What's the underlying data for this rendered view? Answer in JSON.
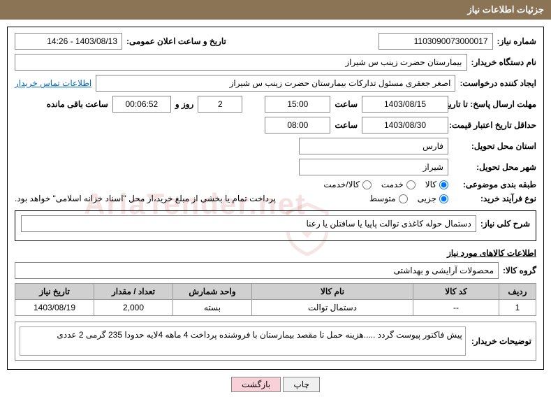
{
  "titleBar": "جزئیات اطلاعات نیاز",
  "fields": {
    "needNumberLabel": "شماره نیاز:",
    "needNumber": "1103090073000017",
    "announceDateLabel": "تاریخ و ساعت اعلان عمومی:",
    "announceDate": "1403/08/13 - 14:26",
    "buyerOrgLabel": "نام دستگاه خریدار:",
    "buyerOrg": "بیمارستان حضرت زینب  س  شیراز",
    "requesterLabel": "ایجاد کننده درخواست:",
    "requester": "اصغر جعفری مسئول تدارکات بیمارستان حضرت زینب  س  شیراز",
    "buyerContactLink": "اطلاعات تماس خریدار",
    "responseDeadlineLabel": "مهلت ارسال پاسخ:  تا تاریخ:",
    "responseDeadlineDate": "1403/08/15",
    "hourLabel": "ساعت",
    "responseDeadlineHour": "15:00",
    "daysAndLabel": "روز و",
    "daysValue": "2",
    "countdownValue": "00:06:52",
    "remainingLabel": "ساعت باقی مانده",
    "priceValidityLabel": "حداقل تاریخ اعتبار قیمت: تا تاریخ:",
    "priceValidityDate": "1403/08/30",
    "priceValidityHour": "08:00",
    "deliveryProvinceLabel": "استان محل تحویل:",
    "deliveryProvince": "فارس",
    "deliveryCityLabel": "شهر محل تحویل:",
    "deliveryCity": "شیراز",
    "categoryLabel": "طبقه بندی موضوعی:",
    "catGoods": "کالا",
    "catService": "خدمت",
    "catGoodsService": "کالا/خدمت",
    "purchaseTypeLabel": "نوع فرآیند خرید:",
    "ptPartial": "جزیی",
    "ptMedium": "متوسط",
    "paymentNote": "پرداخت تمام یا بخشی از مبلغ خرید،از محل \"اسناد خزانه اسلامی\" خواهد بود.",
    "needDescLabel": "شرح کلی نیاز:",
    "needDesc": "دستمال حوله کاغذی توالت پاپیا یا سافتلن یا رعنا",
    "goodsInfoTitle": "اطلاعات کالاهای مورد نیاز",
    "goodsGroupLabel": "گروه کالا:",
    "goodsGroup": "محصولات آرایشی و بهداشتی",
    "buyerNotesLabel": "توضیحات خریدار:",
    "buyerNotes": "پیش فاکتور پیوست گردد .....هزینه حمل تا مقصد بیمارستان با فروشنده   پرداخت 4 ماهه   4لایه حدودا 235 گرمی   2 عددی"
  },
  "table": {
    "headers": {
      "row": "ردیف",
      "code": "کد کالا",
      "name": "نام کالا",
      "unit": "واحد شمارش",
      "qty": "تعداد / مقدار",
      "needDate": "تاریخ نیاز"
    },
    "rows": [
      {
        "row": "1",
        "code": "--",
        "name": "دستمال توالت",
        "unit": "بسته",
        "qty": "2,000",
        "needDate": "1403/08/19"
      }
    ]
  },
  "buttons": {
    "print": "چاپ",
    "back": "بازگشت"
  },
  "colors": {
    "titleBg": "#8b7355",
    "headerBg": "#d0d0d0",
    "btnPink": "#f8d0d8"
  },
  "radioState": {
    "categorySelected": "goods",
    "purchaseTypeSelected": "partial"
  },
  "watermarkText": "AriaTender.net"
}
